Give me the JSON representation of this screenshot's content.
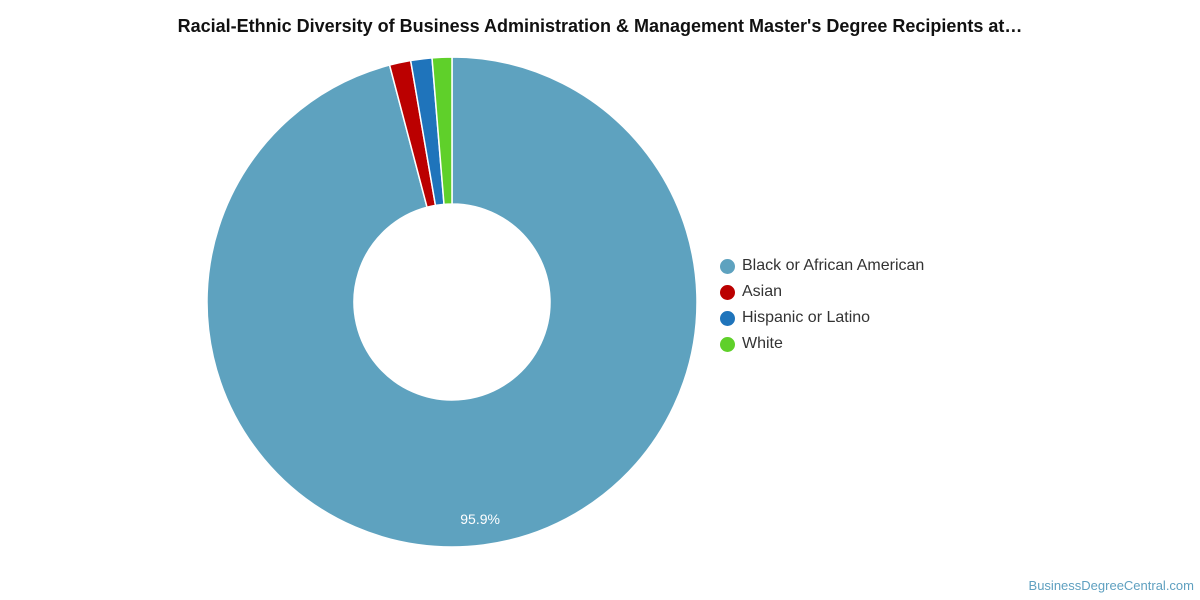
{
  "chart_data": {
    "type": "pie",
    "title": "Racial-Ethnic Diversity of Business Administration & Management Master's Degree Recipients at…",
    "donut": true,
    "categories": [
      "Black or African American",
      "Asian",
      "Hispanic or Latino",
      "White"
    ],
    "values": [
      95.9,
      1.4,
      1.4,
      1.3
    ],
    "unit": "%",
    "colors": [
      "#5ea2bf",
      "#bb0000",
      "#1f74bb",
      "#5fd02a"
    ],
    "data_labels": [
      "95.9%",
      "",
      "",
      ""
    ],
    "legend_position": "right",
    "legend": [
      {
        "label": "Black or African American",
        "color": "#5ea2bf"
      },
      {
        "label": "Asian",
        "color": "#bb0000"
      },
      {
        "label": "Hispanic or Latino",
        "color": "#1f74bb"
      },
      {
        "label": "White",
        "color": "#5fd02a"
      }
    ]
  },
  "source": "BusinessDegreeCentral.com"
}
